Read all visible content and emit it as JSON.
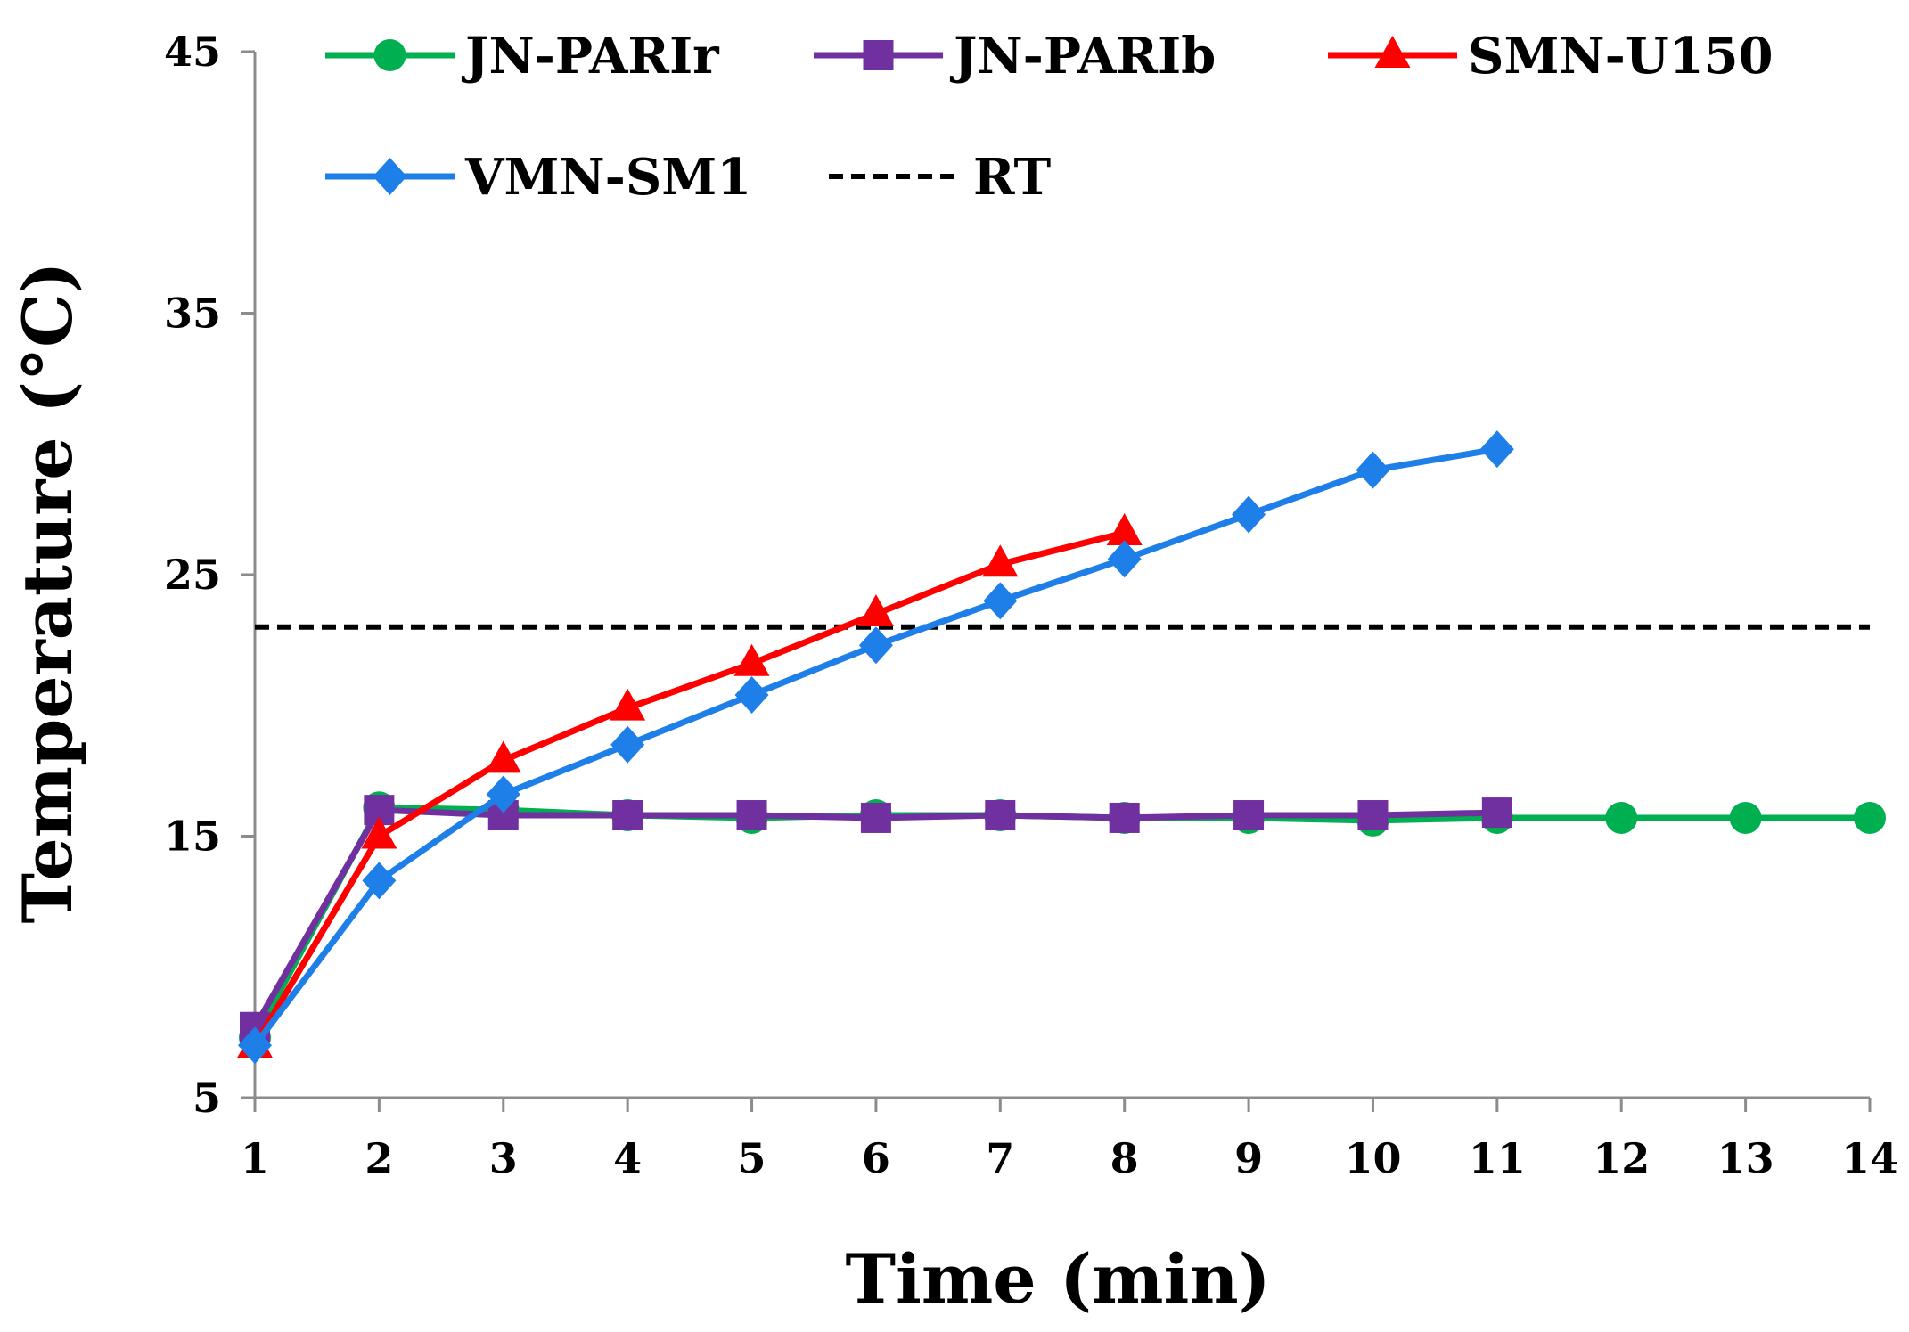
{
  "chart_data": {
    "type": "line",
    "title": "",
    "xlabel": "Time (min)",
    "ylabel": "Temperature  (°C)",
    "x": [
      1,
      2,
      3,
      4,
      5,
      6,
      7,
      8,
      9,
      10,
      11,
      12,
      13,
      14
    ],
    "xlim": [
      1,
      14
    ],
    "ylim": [
      5,
      45
    ],
    "yticks": [
      5,
      15,
      25,
      35,
      45
    ],
    "grid": false,
    "legend_position": "top",
    "series": [
      {
        "name": "JN-PARIr",
        "color": "#00B050",
        "marker": "circle",
        "x": [
          1,
          2,
          3,
          4,
          5,
          6,
          7,
          8,
          9,
          10,
          11,
          12,
          13,
          14
        ],
        "values": [
          7.3,
          16.1,
          16.0,
          15.8,
          15.7,
          15.8,
          15.8,
          15.7,
          15.7,
          15.6,
          15.7,
          15.7,
          15.7,
          15.7
        ]
      },
      {
        "name": "JN-PARIb",
        "color": "#7030A0",
        "marker": "square",
        "x": [
          1,
          2,
          3,
          4,
          5,
          6,
          7,
          8,
          9,
          10,
          11
        ],
        "values": [
          7.7,
          16.0,
          15.8,
          15.8,
          15.8,
          15.7,
          15.8,
          15.7,
          15.8,
          15.8,
          15.9
        ]
      },
      {
        "name": "SMN-U150",
        "color": "#FF0000",
        "marker": "triangle",
        "x": [
          1,
          2,
          3,
          4,
          5,
          6,
          7,
          8
        ],
        "values": [
          7.0,
          15.0,
          17.9,
          19.9,
          21.6,
          23.5,
          25.4,
          26.6
        ]
      },
      {
        "name": "VMN-SM1",
        "color": "#1E7FE8",
        "marker": "diamond",
        "x": [
          1,
          2,
          3,
          4,
          5,
          6,
          7,
          8,
          9,
          10,
          11
        ],
        "values": [
          7.0,
          13.3,
          16.6,
          18.5,
          20.4,
          22.3,
          24.0,
          25.6,
          27.3,
          29.0,
          29.8
        ]
      }
    ],
    "reference_lines": [
      {
        "name": "RT",
        "value": 23.0,
        "color": "#000000",
        "style": "dashed"
      }
    ]
  }
}
